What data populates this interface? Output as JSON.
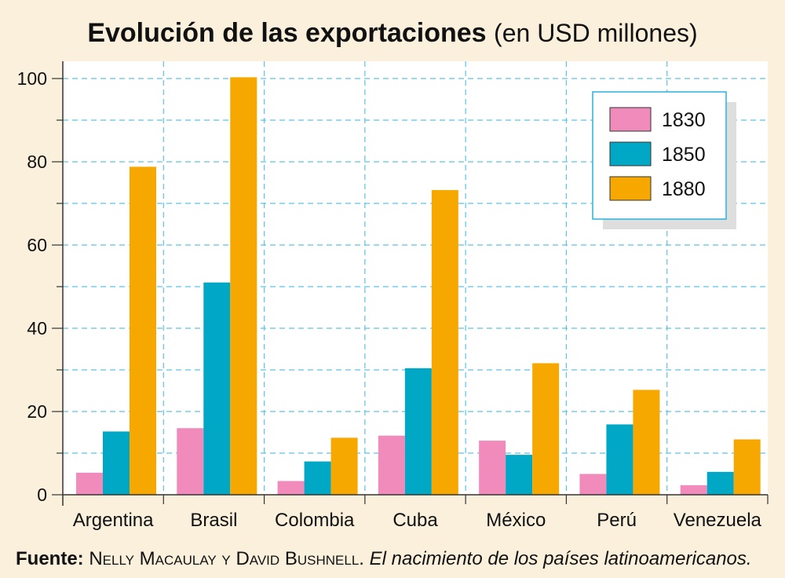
{
  "chart_data": {
    "type": "bar",
    "title": "Evolución de las exportaciones",
    "subtitle": "(en USD millones)",
    "categories": [
      "Argentina",
      "Brasil",
      "Colombia",
      "Cuba",
      "México",
      "Perú",
      "Venezuela"
    ],
    "series": [
      {
        "name": "1830",
        "color": "#f08bbb",
        "values": [
          5.3,
          16,
          3.3,
          14.2,
          13,
          5,
          2.3
        ]
      },
      {
        "name": "1850",
        "color": "#00a8c6",
        "values": [
          15.2,
          51,
          8,
          30.4,
          9.6,
          16.9,
          5.5
        ]
      },
      {
        "name": "1880",
        "color": "#f6a800",
        "values": [
          78.8,
          100.3,
          13.7,
          73.2,
          31.6,
          25.2,
          13.3
        ]
      }
    ],
    "yticks": [
      0,
      20,
      40,
      60,
      80,
      100
    ],
    "ylim": [
      0,
      105
    ],
    "grid": true,
    "legend_position": "top-right"
  },
  "source": {
    "label": "Fuente:",
    "authors": "Nelly Macaulay y David Bushnell.",
    "book": "El nacimiento de los países latinoamericanos."
  }
}
